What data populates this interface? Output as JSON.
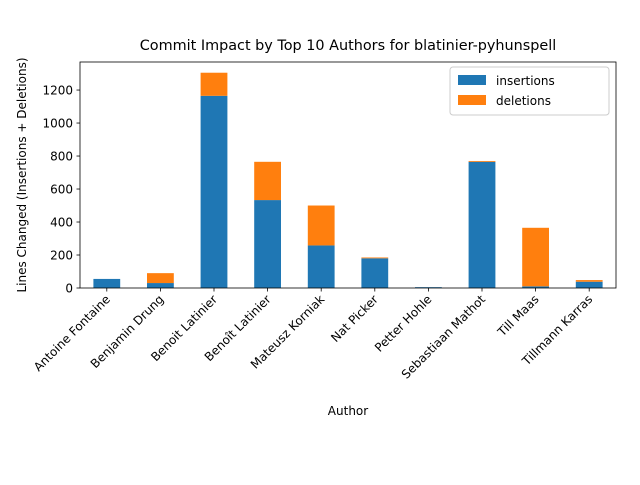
{
  "chart_data": {
    "type": "bar",
    "stacked": true,
    "title": "Commit Impact by Top 10 Authors for blatinier-pyhunspell",
    "xlabel": "Author",
    "ylabel": "Lines Changed (Insertions + Deletions)",
    "categories": [
      "Antoine Fontaine",
      "Benjamin Drung",
      "Benoit Latinier",
      "Benoît Latinier",
      "Mateusz Korniak",
      "Nat Picker",
      "Petter Hohle",
      "Sebastiaan Mathot",
      "Till Maas",
      "Tillmann Karras"
    ],
    "series": [
      {
        "name": "insertions",
        "color": "#1f77b4",
        "values": [
          55,
          30,
          1165,
          533,
          258,
          180,
          5,
          765,
          10,
          38
        ]
      },
      {
        "name": "deletions",
        "color": "#ff7f0e",
        "values": [
          0,
          60,
          140,
          232,
          242,
          5,
          0,
          5,
          355,
          10
        ]
      }
    ],
    "ylim": [
      0,
      1370
    ],
    "yticks": [
      0,
      200,
      400,
      600,
      800,
      1000,
      1200
    ],
    "grid": false,
    "legend_position": "top-right"
  }
}
